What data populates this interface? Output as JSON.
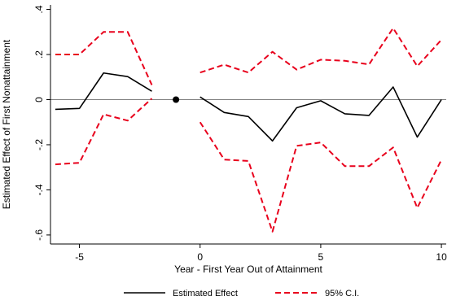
{
  "chart_data": {
    "type": "line",
    "xlabel": "Year - First Year Out of Attainment",
    "ylabel": "Estimated Effect of First Nonattainment",
    "xlim": [
      -6.2,
      10.2
    ],
    "ylim": [
      -0.64,
      0.42
    ],
    "x_ticks": [
      -5,
      0,
      5,
      10
    ],
    "x_tick_labels": [
      "-5",
      "0",
      "5",
      "10"
    ],
    "y_ticks": [
      -0.6,
      -0.4,
      -0.2,
      0,
      0.2,
      0.4
    ],
    "y_tick_labels": [
      "-.6",
      "-.4",
      "-.2",
      "0",
      ".2",
      ".4"
    ],
    "zero_line": true,
    "reference_point": {
      "x": -1,
      "y": 0
    },
    "legend_position": "bottom",
    "series": [
      {
        "name": "Estimated Effect",
        "style": "solid",
        "color": "#000000",
        "segments": [
          {
            "x": [
              -6,
              -5,
              -4,
              -3,
              -2
            ],
            "y": [
              -0.043,
              -0.039,
              0.118,
              0.102,
              0.037
            ]
          },
          {
            "x": [
              0,
              1,
              2,
              3,
              4,
              5,
              6,
              7,
              8,
              9,
              10
            ],
            "y": [
              0.012,
              -0.057,
              -0.075,
              -0.183,
              -0.036,
              -0.005,
              -0.063,
              -0.07,
              0.056,
              -0.166,
              0.0
            ]
          }
        ]
      },
      {
        "name": "95% C.I.",
        "style": "dashed",
        "color": "#e8001c",
        "segments": [
          {
            "x": [
              -6,
              -5,
              -4,
              -3,
              -2
            ],
            "y": [
              0.2,
              0.2,
              0.3,
              0.3,
              0.065
            ]
          },
          {
            "x": [
              -6,
              -5,
              -4,
              -3,
              -2
            ],
            "y": [
              -0.287,
              -0.28,
              -0.065,
              -0.093,
              0.005
            ]
          },
          {
            "x": [
              0,
              1,
              2,
              3,
              4,
              5,
              6,
              7,
              8,
              9,
              10
            ],
            "y": [
              0.12,
              0.155,
              0.12,
              0.212,
              0.133,
              0.177,
              0.172,
              0.156,
              0.317,
              0.148,
              0.265
            ]
          },
          {
            "x": [
              0,
              1,
              2,
              3,
              4,
              5,
              6,
              7,
              8,
              9,
              10
            ],
            "y": [
              -0.1,
              -0.266,
              -0.272,
              -0.585,
              -0.205,
              -0.19,
              -0.295,
              -0.295,
              -0.212,
              -0.48,
              -0.267
            ]
          }
        ]
      }
    ]
  }
}
